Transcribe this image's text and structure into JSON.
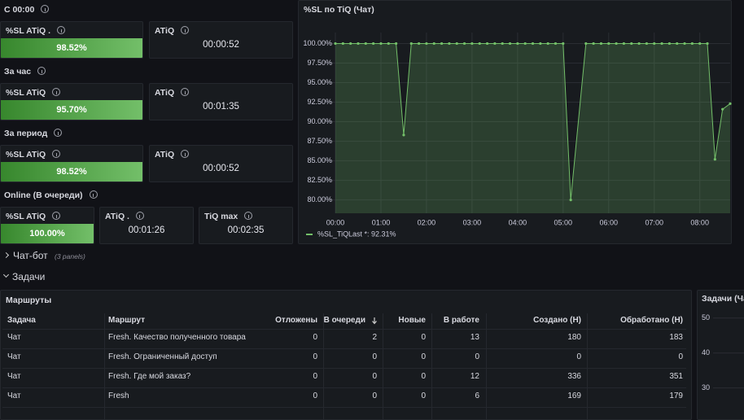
{
  "sections": [
    {
      "title": "C 00:00",
      "panels": [
        {
          "title": "%SL ATiQ .",
          "value": "98.52%"
        },
        {
          "title": "ATiQ",
          "value": "00:00:52"
        }
      ]
    },
    {
      "title": "За час",
      "panels": [
        {
          "title": "%SL ATiQ",
          "value": "95.70%"
        },
        {
          "title": "ATiQ",
          "value": "00:01:35"
        }
      ]
    },
    {
      "title": "За период",
      "panels": [
        {
          "title": "%SL ATiQ",
          "value": "98.52%"
        },
        {
          "title": "ATiQ",
          "value": "00:00:52"
        }
      ]
    },
    {
      "title": "Online (В очереди)",
      "panels": [
        {
          "title": "%SL ATiQ",
          "value": "100.00%"
        },
        {
          "title": "ATiQ .",
          "value": "00:01:26"
        },
        {
          "title": "TiQ max",
          "value": "00:02:35"
        }
      ]
    }
  ],
  "chart_data": [
    {
      "type": "line",
      "title": "%SL по TiQ (Чат)",
      "x": [
        "00:00",
        "00:10",
        "00:20",
        "00:30",
        "00:40",
        "00:50",
        "01:00",
        "01:10",
        "01:20",
        "01:30",
        "01:40",
        "01:50",
        "02:00",
        "02:10",
        "02:20",
        "02:30",
        "02:40",
        "02:50",
        "03:00",
        "03:10",
        "03:20",
        "03:30",
        "03:40",
        "03:50",
        "04:00",
        "04:10",
        "04:20",
        "04:30",
        "04:40",
        "04:50",
        "05:00",
        "05:10",
        "05:30",
        "05:40",
        "05:50",
        "06:00",
        "06:10",
        "06:20",
        "06:30",
        "06:40",
        "06:50",
        "07:00",
        "07:10",
        "07:20",
        "07:30",
        "07:40",
        "07:50",
        "08:00",
        "08:10",
        "08:20",
        "08:30",
        "08:40"
      ],
      "series": [
        {
          "name": "%SL_TiQ",
          "color": "#73bf69",
          "legend_value": "Last *: 92.31%",
          "values": [
            100,
            100,
            100,
            100,
            100,
            100,
            100,
            100,
            100,
            88.3,
            100,
            100,
            100,
            100,
            100,
            100,
            100,
            100,
            100,
            100,
            100,
            100,
            100,
            100,
            100,
            100,
            100,
            100,
            100,
            100,
            100,
            80.0,
            100,
            100,
            100,
            100,
            100,
            100,
            100,
            100,
            100,
            100,
            100,
            100,
            100,
            100,
            100,
            100,
            100,
            85.2,
            91.6,
            92.31
          ]
        }
      ],
      "xlim": [
        "00:00",
        "08:40"
      ],
      "xticks": [
        "00:00",
        "01:00",
        "02:00",
        "03:00",
        "04:00",
        "05:00",
        "06:00",
        "07:00",
        "08:00"
      ],
      "ylim": [
        78.3,
        101.4
      ],
      "yticks": [
        {
          "value": 80,
          "label": "80.00%"
        },
        {
          "value": 82.5,
          "label": "82.50%"
        },
        {
          "value": 85,
          "label": "85.00%"
        },
        {
          "value": 87.5,
          "label": "87.50%"
        },
        {
          "value": 90,
          "label": "90.00%"
        },
        {
          "value": 92.5,
          "label": "92.50%"
        },
        {
          "value": 95,
          "label": "95.00%"
        },
        {
          "value": 97.5,
          "label": "97.50%"
        },
        {
          "value": 100,
          "label": "100.00%"
        }
      ],
      "grid": true
    },
    {
      "type": "line",
      "title": "Задачи (Ча",
      "ylim": [
        22,
        52.5
      ],
      "yticks": [
        30,
        40,
        50
      ],
      "grid": true
    }
  ],
  "rows": [
    {
      "title": "Чат-бот",
      "note": "(3 panels)"
    },
    {
      "title": "Задачи"
    }
  ],
  "table": {
    "title": "Маршруты",
    "columns": [
      "Задача",
      "Маршрут",
      "Отложены",
      "В очереди",
      "Новые",
      "В работе",
      "Создано (Н)",
      "Обработано (Н)"
    ],
    "rows": [
      [
        "Чат",
        "Fresh. Качество полученного товара",
        0,
        2,
        0,
        13,
        180,
        183
      ],
      [
        "Чат",
        "Fresh. Ограниченный доступ",
        0,
        0,
        0,
        0,
        0,
        0
      ],
      [
        "Чат",
        "Fresh. Где мой заказ?",
        0,
        0,
        0,
        12,
        336,
        351
      ],
      [
        "Чат",
        "Fresh",
        0,
        0,
        0,
        6,
        169,
        179
      ]
    ]
  }
}
